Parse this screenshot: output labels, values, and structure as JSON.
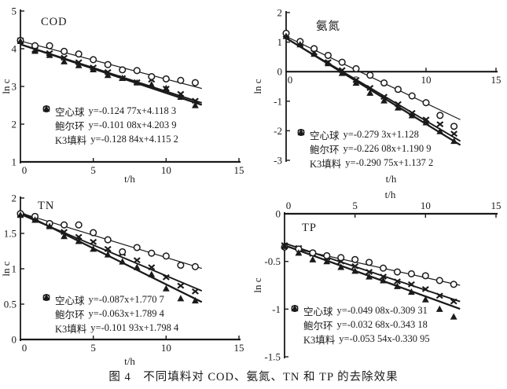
{
  "caption": "图 4　不同填料对 COD、氨氮、TN 和 TP 的去除效果",
  "colors": {
    "ink": "#1a1a1a",
    "background": "#ffffff"
  },
  "chart_data": [
    {
      "type": "scatter",
      "title": "COD",
      "xlabel": "t/h",
      "ylabel": "ln c",
      "xlim": [
        0,
        15
      ],
      "ylim": [
        1,
        5
      ],
      "xticks": [
        0,
        5,
        10,
        15
      ],
      "yticks": [
        1,
        2,
        3,
        4,
        5
      ],
      "x_axis_at": 1,
      "x_tick_labels": "below",
      "grid": false,
      "legend_position": "lower-left",
      "x": [
        0,
        1,
        2,
        3,
        4,
        5,
        6,
        7,
        8,
        9,
        10,
        11,
        12
      ],
      "series": [
        {
          "name": "空心球",
          "marker": "x",
          "equation": "y=-0.124 77x+4.118 3",
          "slope": -0.12477,
          "intercept": 4.1183,
          "values": [
            4.22,
            3.97,
            3.88,
            3.76,
            3.64,
            3.5,
            3.38,
            3.22,
            3.11,
            3.18,
            2.94,
            2.8,
            2.62
          ]
        },
        {
          "name": "鲍尔环",
          "marker": "circle",
          "equation": "y=-0.101 08x+4.203 9",
          "slope": -0.10108,
          "intercept": 4.2039,
          "values": [
            4.22,
            4.08,
            4.08,
            3.93,
            3.86,
            3.71,
            3.58,
            3.44,
            3.42,
            3.26,
            3.2,
            3.16,
            3.1
          ]
        },
        {
          "name": "K3填料",
          "marker": "triangle",
          "equation": "y=-0.128 84x+4.115 2",
          "slope": -0.12884,
          "intercept": 4.1152,
          "values": [
            4.2,
            3.94,
            3.83,
            3.66,
            3.56,
            3.45,
            3.3,
            3.22,
            3.1,
            3.05,
            2.95,
            2.72,
            2.5
          ]
        }
      ]
    },
    {
      "type": "scatter",
      "title": "氨氮",
      "xlabel": "t/h",
      "ylabel": "ln c",
      "xlim": [
        0,
        15
      ],
      "ylim": [
        -3,
        2
      ],
      "xticks": [
        0,
        5,
        10,
        15
      ],
      "yticks": [
        -3,
        -2,
        -1,
        0,
        1,
        2
      ],
      "x_axis_at": 0,
      "x_tick_labels": "below",
      "grid": false,
      "legend_position": "lower-left",
      "x": [
        0,
        1,
        2,
        3,
        4,
        5,
        6,
        7,
        8,
        9,
        10,
        11,
        12
      ],
      "series": [
        {
          "name": "空心球",
          "marker": "x",
          "equation": "y=-0.279 3x+1.128",
          "slope": -0.2793,
          "intercept": 1.128,
          "values": [
            1.25,
            0.95,
            0.65,
            0.32,
            0.05,
            -0.28,
            -0.55,
            -0.85,
            -1.1,
            -1.4,
            -1.62,
            -1.78,
            -2.1
          ]
        },
        {
          "name": "鲍尔环",
          "marker": "circle",
          "equation": "y=-0.226 08x+1.190 9",
          "slope": -0.22608,
          "intercept": 1.1909,
          "values": [
            1.3,
            1.02,
            0.78,
            0.55,
            0.32,
            0.1,
            -0.12,
            -0.38,
            -0.6,
            -0.82,
            -1.05,
            -1.48,
            -1.85
          ]
        },
        {
          "name": "K3填料",
          "marker": "triangle",
          "equation": "y=-0.290 75x+1.137 2",
          "slope": -0.29075,
          "intercept": 1.1372,
          "values": [
            1.2,
            0.92,
            0.6,
            0.28,
            -0.05,
            -0.38,
            -0.72,
            -0.98,
            -1.22,
            -1.48,
            -1.72,
            -2.02,
            -2.35
          ]
        }
      ]
    },
    {
      "type": "scatter",
      "title": "TN",
      "xlabel": "t/h",
      "ylabel": "ln c",
      "xlim": [
        0,
        15
      ],
      "ylim": [
        0,
        2
      ],
      "xticks": [
        0,
        5,
        10,
        15
      ],
      "yticks": [
        0,
        0.5,
        1,
        1.5,
        2
      ],
      "x_axis_at": 0,
      "x_tick_labels": "below",
      "grid": false,
      "legend_position": "lower-left",
      "x": [
        0,
        1,
        2,
        3,
        4,
        5,
        6,
        7,
        8,
        9,
        10,
        11,
        12
      ],
      "series": [
        {
          "name": "空心球",
          "marker": "x",
          "equation": "y=-0.087x+1.770 7",
          "slope": -0.087,
          "intercept": 1.7707,
          "values": [
            1.77,
            1.72,
            1.61,
            1.52,
            1.45,
            1.38,
            1.28,
            1.22,
            1.12,
            1.02,
            0.88,
            0.76,
            0.68
          ]
        },
        {
          "name": "鲍尔环",
          "marker": "circle",
          "equation": "y=-0.063x+1.789 4",
          "slope": -0.063,
          "intercept": 1.7894,
          "values": [
            1.78,
            1.74,
            1.64,
            1.62,
            1.62,
            1.51,
            1.41,
            1.24,
            1.3,
            1.22,
            1.18,
            1.05,
            1.03
          ]
        },
        {
          "name": "K3填料",
          "marker": "triangle",
          "equation": "y=-0.101 93x+1.798 4",
          "slope": -0.10193,
          "intercept": 1.7984,
          "values": [
            1.76,
            1.69,
            1.6,
            1.46,
            1.39,
            1.28,
            1.2,
            1.1,
            1.02,
            0.92,
            0.72,
            0.58,
            0.55
          ]
        }
      ]
    },
    {
      "type": "scatter",
      "title": "TP",
      "xlabel": "t/h",
      "ylabel": "ln c",
      "xlim": [
        0,
        15
      ],
      "ylim": [
        -1.5,
        0
      ],
      "xticks": [
        0,
        5,
        10,
        15
      ],
      "yticks": [
        -1.5,
        -1,
        -0.5,
        0
      ],
      "x_axis_at": 0,
      "x_tick_labels": "above",
      "grid": false,
      "legend_position": "lower-left",
      "x": [
        0,
        1,
        2,
        3,
        4,
        5,
        6,
        7,
        8,
        9,
        10,
        11,
        12
      ],
      "series": [
        {
          "name": "空心球",
          "marker": "x",
          "equation": "y=-0.049 08x-0.309 31",
          "slope": -0.04908,
          "intercept": -0.30931,
          "values": [
            -0.33,
            -0.36,
            -0.42,
            -0.46,
            -0.5,
            -0.55,
            -0.61,
            -0.66,
            -0.71,
            -0.74,
            -0.79,
            -0.86,
            -0.92
          ]
        },
        {
          "name": "鲍尔环",
          "marker": "circle",
          "equation": "y=-0.032 68x-0.343 18",
          "slope": -0.03268,
          "intercept": -0.34318,
          "values": [
            -0.35,
            -0.37,
            -0.41,
            -0.44,
            -0.46,
            -0.48,
            -0.51,
            -0.57,
            -0.61,
            -0.63,
            -0.65,
            -0.7,
            -0.74
          ]
        },
        {
          "name": "K3填料",
          "marker": "triangle",
          "equation": "y=-0.053 54x-0.330 95",
          "slope": -0.05354,
          "intercept": -0.33095,
          "values": [
            -0.34,
            -0.41,
            -0.48,
            -0.5,
            -0.56,
            -0.6,
            -0.66,
            -0.7,
            -0.76,
            -0.82,
            -0.9,
            -1.0,
            -1.08
          ]
        }
      ]
    }
  ]
}
